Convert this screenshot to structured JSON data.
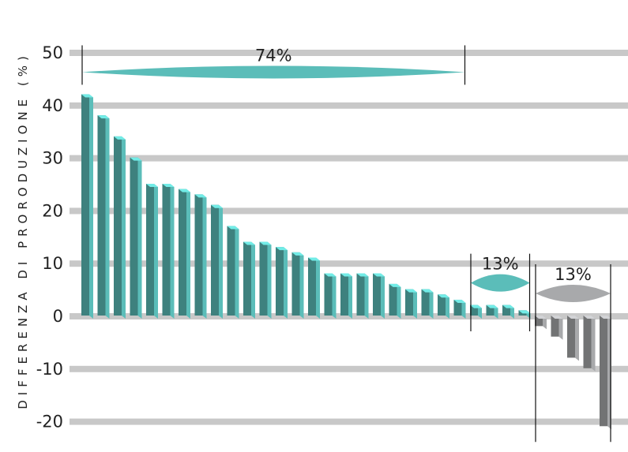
{
  "chart_data": {
    "type": "bar",
    "title": "",
    "xlabel": "",
    "ylabel": "DIFFERENZA DI PRORODUZIONE (%)",
    "ylim": [
      -20,
      50
    ],
    "yticks": [
      50,
      40,
      30,
      20,
      10,
      0,
      -10,
      -20
    ],
    "ytick_labels": [
      "50",
      "40",
      "30",
      "20",
      "10",
      "0",
      "-10",
      "-20"
    ],
    "grid": true,
    "colors": {
      "positive": "#5bbdb9",
      "negative": "#a8a9ab",
      "gridline": "#c8c8c8"
    },
    "values": [
      42,
      38,
      34,
      30,
      25,
      25,
      24,
      23,
      21,
      17,
      14,
      14,
      13,
      12,
      11,
      8,
      8,
      8,
      8,
      6,
      5,
      5,
      4,
      3,
      2,
      2,
      2,
      1,
      -2,
      -4,
      -8,
      -10,
      -21
    ],
    "groups": [
      {
        "label": "74%",
        "first": 0,
        "last": 23,
        "color": "#5bbdb9"
      },
      {
        "label": "13%",
        "first": 24,
        "last": 27,
        "color": "#5bbdb9"
      },
      {
        "label": "13%",
        "first": 28,
        "last": 32,
        "color": "#a8a9ab"
      }
    ]
  }
}
